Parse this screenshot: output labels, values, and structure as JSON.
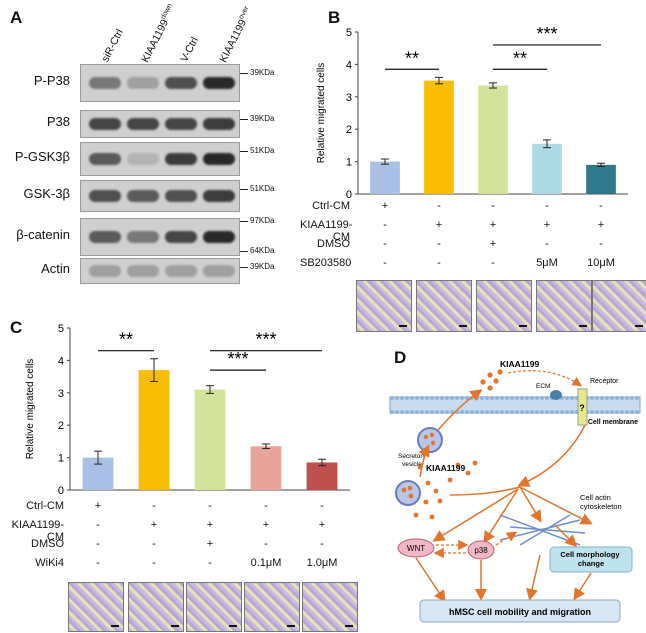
{
  "panels": {
    "a": "A",
    "b": "B",
    "c": "C",
    "d": "D"
  },
  "colors": {
    "blue": "#a8c0e6",
    "orange": "#fbbc04",
    "lightgreen": "#d4e39b",
    "lightcyan": "#add8e6",
    "teal": "#2f7a8a",
    "pink": "#e8a49a",
    "red": "#c0504d",
    "arrow": "#e2742b",
    "membrane": "#c8dcef",
    "bubble": "#f2b7c6"
  },
  "western_blot": {
    "lanes": [
      "siR-Ctrl",
      "KIAA1199down",
      "V-Ctrl",
      "KIAA1199over"
    ],
    "lane_parts": [
      {
        "base": "siR-Ctrl",
        "sup": ""
      },
      {
        "base": "KIAA1199",
        "sup": "down"
      },
      {
        "base": "V-Ctrl",
        "sup": ""
      },
      {
        "base": "KIAA1199",
        "sup": "over"
      }
    ],
    "rows": [
      {
        "label": "P-P38",
        "markers": [
          "39KDa"
        ]
      },
      {
        "label": "P38",
        "markers": [
          "39KDa"
        ]
      },
      {
        "label": "P-GSK3β",
        "markers": [
          "51KDa"
        ]
      },
      {
        "label": "GSK-3β",
        "markers": [
          "51KDa"
        ]
      },
      {
        "label": "β-catenin",
        "markers": [
          "97KDa",
          "64KDa"
        ]
      },
      {
        "label": "Actin",
        "markers": [
          "39KDa"
        ]
      }
    ],
    "band_intensity": [
      [
        0.55,
        0.35,
        0.75,
        0.95
      ],
      [
        0.8,
        0.8,
        0.8,
        0.85
      ],
      [
        0.7,
        0.25,
        0.85,
        0.95
      ],
      [
        0.75,
        0.7,
        0.75,
        0.85
      ],
      [
        0.7,
        0.55,
        0.8,
        0.95
      ],
      [
        0.35,
        0.35,
        0.35,
        0.35
      ]
    ]
  },
  "chart_data": [
    {
      "type": "bar",
      "panel": "B",
      "ylabel": "Relative migrated cells",
      "ylim": [
        0,
        5
      ],
      "yticks": [
        "0",
        "1",
        "2",
        "3",
        "4",
        "5"
      ],
      "values": [
        1.0,
        3.5,
        3.35,
        1.55,
        0.9
      ],
      "errors": [
        0.08,
        0.1,
        0.08,
        0.12,
        0.05
      ],
      "colors": [
        "#a8c0e6",
        "#fbbc04",
        "#d4e39b",
        "#add8e6",
        "#2f7a8a"
      ],
      "significance": [
        {
          "label": "**",
          "from": 0,
          "to": 1,
          "y": 3.85
        },
        {
          "label": "**",
          "from": 2,
          "to": 3,
          "y": 3.85
        },
        {
          "label": "***",
          "from": 2,
          "to": 4,
          "y": 4.6
        }
      ],
      "conditions": [
        {
          "name": "Ctrl-CM",
          "values": [
            "+",
            "-",
            "-",
            "-",
            "-"
          ]
        },
        {
          "name": "KIAA1199-CM",
          "values": [
            "-",
            "+",
            "+",
            "+",
            "+"
          ]
        },
        {
          "name": "DMSO",
          "values": [
            "-",
            "-",
            "+",
            "-",
            "-"
          ]
        },
        {
          "name": "SB203580",
          "values": [
            "-",
            "-",
            "-",
            "5μM",
            "10μM"
          ]
        }
      ]
    },
    {
      "type": "bar",
      "panel": "C",
      "ylabel": "Relative migrated cells",
      "ylim": [
        0,
        5
      ],
      "yticks": [
        "0",
        "1",
        "2",
        "3",
        "4",
        "5"
      ],
      "values": [
        1.0,
        3.7,
        3.1,
        1.35,
        0.85
      ],
      "errors": [
        0.2,
        0.35,
        0.12,
        0.07,
        0.1
      ],
      "colors": [
        "#a8c0e6",
        "#fbbc04",
        "#d4e39b",
        "#e8a49a",
        "#c0504d"
      ],
      "significance": [
        {
          "label": "**",
          "from": 0,
          "to": 1,
          "y": 4.3
        },
        {
          "label": "***",
          "from": 2,
          "to": 3,
          "y": 3.7
        },
        {
          "label": "***",
          "from": 2,
          "to": 4,
          "y": 4.3
        }
      ],
      "conditions": [
        {
          "name": "Ctrl-CM",
          "values": [
            "+",
            "-",
            "-",
            "-",
            "-"
          ]
        },
        {
          "name": "KIAA1199-CM",
          "values": [
            "-",
            "+",
            "+",
            "+",
            "+"
          ]
        },
        {
          "name": "DMSO",
          "values": [
            "-",
            "-",
            "+",
            "-",
            "-"
          ]
        },
        {
          "name": "WiKi4",
          "values": [
            "-",
            "-",
            "-",
            "0.1μM",
            "1.0μM"
          ]
        }
      ]
    }
  ],
  "diagram": {
    "kiaa_top": "KIAA1199",
    "kiaa_mid": "KIAA1199",
    "ecm": "ECM",
    "receptor": "Receptor",
    "question": "?",
    "secretory": "Secretory\nvesicle",
    "membrane": "Cell membrane",
    "actin": "Cell actin\ncytoskeleton",
    "wnt": "WNT",
    "p38": "p38",
    "morphology": "Cell morphology\nchange",
    "result": "hMSC cell mobility and migration"
  }
}
